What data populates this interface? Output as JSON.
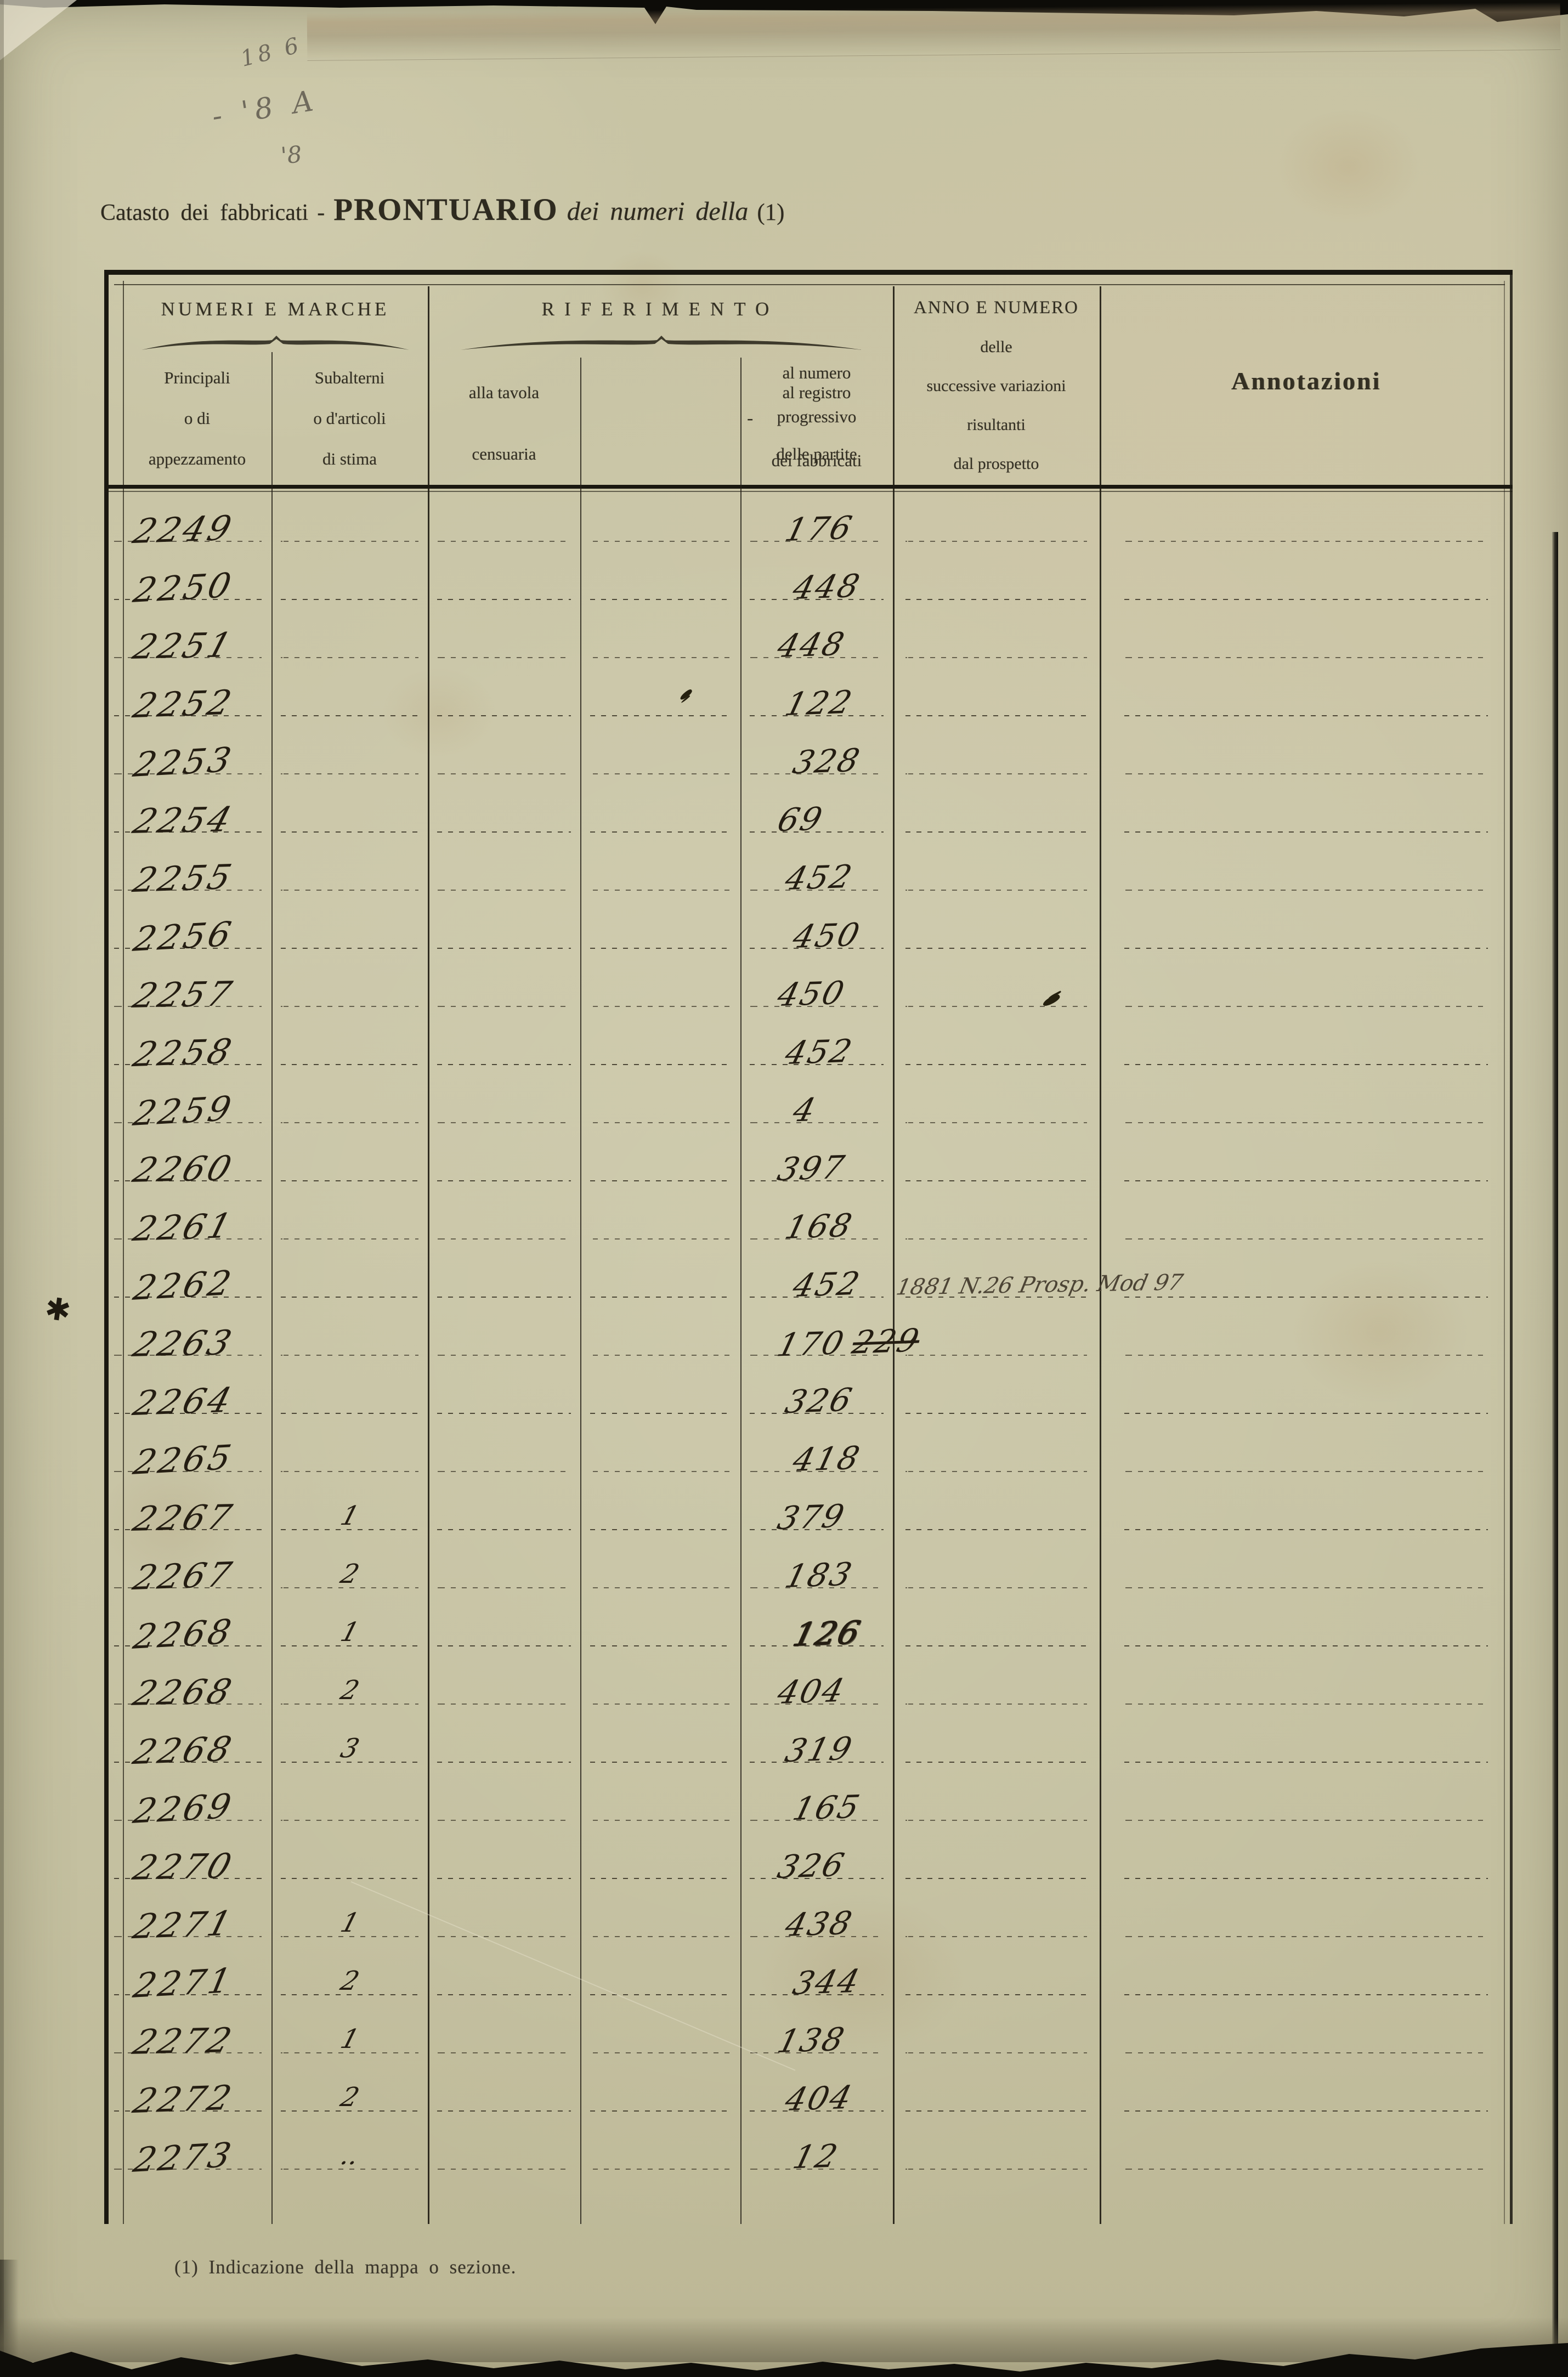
{
  "page": {
    "pencil_marks": [
      "18 6",
      "- '8 A",
      "'8"
    ],
    "margin_mark": "✱",
    "title": {
      "prefix": "Catasto dei fabbricati",
      "dash": "-",
      "main": "PRONTUARIO",
      "italic": "dei numeri della",
      "ref": "(1)"
    },
    "footnote": "(1) Indicazione della mappa o sezione."
  },
  "table": {
    "groups": {
      "numeri_e_marche": "NUMERI E MARCHE",
      "riferimento": "RIFERIMENTO"
    },
    "columns": {
      "principali": [
        "Principali",
        "o di",
        "appezzamento"
      ],
      "subalterni": [
        "Subalterni",
        "o d'articoli",
        "di stima"
      ],
      "tavola": [
        "alla tavola",
        "censuaria"
      ],
      "numero_progressivo": [
        "al numero",
        "progressivo",
        "dei fabbricati"
      ],
      "registro": [
        "al registro",
        "delle partite"
      ],
      "registro_dash": "-",
      "anno_numero": [
        "ANNO E NUMERO",
        "delle",
        "successive variazioni",
        "risultanti",
        "dal prospetto"
      ],
      "annotazioni": "Annotazioni"
    },
    "rows": [
      {
        "principale": "2249",
        "subalterno": "",
        "registro": "176"
      },
      {
        "principale": "2250",
        "subalterno": "",
        "registro": "448"
      },
      {
        "principale": "2251",
        "subalterno": "",
        "registro": "448"
      },
      {
        "principale": "2252",
        "subalterno": "",
        "registro": "122"
      },
      {
        "principale": "2253",
        "subalterno": "",
        "registro": "328"
      },
      {
        "principale": "2254",
        "subalterno": "",
        "registro": "69"
      },
      {
        "principale": "2255",
        "subalterno": "",
        "registro": "452"
      },
      {
        "principale": "2256",
        "subalterno": "",
        "registro": "450"
      },
      {
        "principale": "2257",
        "subalterno": "",
        "registro": "450"
      },
      {
        "principale": "2258",
        "subalterno": "",
        "registro": "452"
      },
      {
        "principale": "2259",
        "subalterno": "",
        "registro": "4"
      },
      {
        "principale": "2260",
        "subalterno": "",
        "registro": "397"
      },
      {
        "principale": "2261",
        "subalterno": "",
        "registro": "168"
      },
      {
        "principale": "2262",
        "subalterno": "",
        "registro": "452",
        "variazione": "1881 N.26 Prosp. Mod 97",
        "margin_mark": true
      },
      {
        "principale": "2263",
        "subalterno": "",
        "registro": "170",
        "registro_struck": "229"
      },
      {
        "principale": "2264",
        "subalterno": "",
        "registro": "326"
      },
      {
        "principale": "2265",
        "subalterno": "",
        "registro": "418"
      },
      {
        "principale": "2267",
        "subalterno": "1",
        "registro": "379"
      },
      {
        "principale": "2267",
        "subalterno": "2",
        "registro": "183"
      },
      {
        "principale": "2268",
        "subalterno": "1",
        "registro": "126",
        "overwritten": true
      },
      {
        "principale": "2268",
        "subalterno": "2",
        "registro": "404"
      },
      {
        "principale": "2268",
        "subalterno": "3",
        "registro": "319"
      },
      {
        "principale": "2269",
        "subalterno": "",
        "registro": "165"
      },
      {
        "principale": "2270",
        "subalterno": "",
        "registro": "326"
      },
      {
        "principale": "2271",
        "subalterno": "1",
        "registro": "438"
      },
      {
        "principale": "2271",
        "subalterno": "2",
        "registro": "344"
      },
      {
        "principale": "2272",
        "subalterno": "1",
        "registro": "138"
      },
      {
        "principale": "2272",
        "subalterno": "2",
        "registro": "404"
      },
      {
        "principale": "2273",
        "subalterno": "..",
        "registro": "12"
      }
    ]
  },
  "colors": {
    "paper": "#c8c4a5",
    "handwriting_ink": "#241d12",
    "print_ink": "#2f2b1f",
    "rule_line": "#35301f",
    "pencil": "#6f6a5c"
  }
}
